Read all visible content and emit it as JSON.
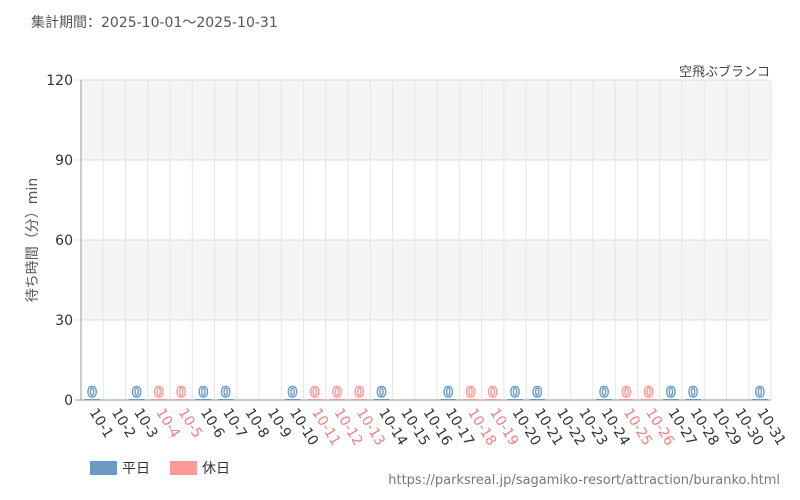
{
  "period_text": "集計期間：2025-10-01〜2025-10-31",
  "chart_data": {
    "type": "bar",
    "title": "空飛ぶブランコ",
    "ylabel": "待ち時間（分）min",
    "xlabel": "",
    "ylim": [
      0,
      120
    ],
    "yticks": [
      0,
      30,
      60,
      90,
      120
    ],
    "grid": true,
    "legend_position": "bottom-left",
    "categories": [
      "10-1",
      "10-2",
      "10-3",
      "10-4",
      "10-5",
      "10-6",
      "10-7",
      "10-8",
      "10-9",
      "10-10",
      "10-11",
      "10-12",
      "10-13",
      "10-14",
      "10-15",
      "10-16",
      "10-17",
      "10-18",
      "10-19",
      "10-20",
      "10-21",
      "10-22",
      "10-23",
      "10-24",
      "10-25",
      "10-26",
      "10-27",
      "10-28",
      "10-29",
      "10-30",
      "10-31"
    ],
    "day_types": [
      "weekday",
      "weekday",
      "weekday",
      "holiday",
      "holiday",
      "weekday",
      "weekday",
      "weekday",
      "weekday",
      "weekday",
      "holiday",
      "holiday",
      "holiday",
      "weekday",
      "weekday",
      "weekday",
      "weekday",
      "holiday",
      "holiday",
      "weekday",
      "weekday",
      "weekday",
      "weekday",
      "weekday",
      "holiday",
      "holiday",
      "weekday",
      "weekday",
      "weekday",
      "weekday",
      "weekday"
    ],
    "values": [
      0,
      null,
      0,
      0,
      0,
      0,
      0,
      null,
      null,
      0,
      0,
      0,
      0,
      0,
      null,
      null,
      0,
      0,
      0,
      0,
      0,
      null,
      null,
      0,
      0,
      0,
      0,
      0,
      null,
      null,
      0
    ],
    "data_labels": [
      "0",
      "",
      "0",
      "0",
      "0",
      "0",
      "0",
      "",
      "",
      "0",
      "0",
      "0",
      "0",
      "0",
      "",
      "",
      "0",
      "0",
      "0",
      "0",
      "0",
      "",
      "",
      "0",
      "0",
      "0",
      "0",
      "0",
      "",
      "",
      "0"
    ],
    "series": [
      {
        "name": "平日",
        "color": "#6b9bc3"
      },
      {
        "name": "休日",
        "color": "#ff9999"
      }
    ]
  },
  "colors": {
    "weekday": "#6b9bc3",
    "holiday": "#ff9999",
    "weekday_label": "#333333",
    "holiday_label": "#f08080"
  },
  "source_url": "https://parksreal.jp/sagamiko-resort/attraction/buranko.html"
}
